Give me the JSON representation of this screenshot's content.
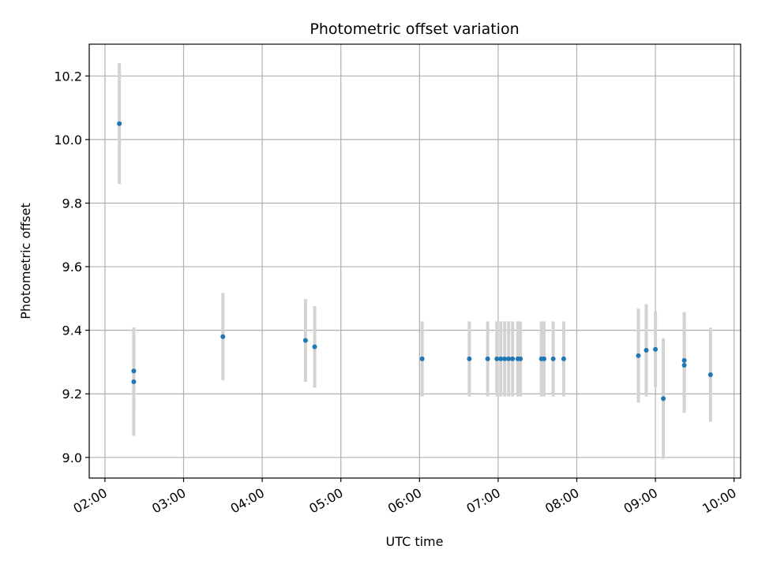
{
  "chart_data": {
    "type": "scatter",
    "title": "Photometric offset variation",
    "xlabel": "UTC time",
    "ylabel": "Photometric offset",
    "x_tick_labels": [
      "02:00",
      "03:00",
      "04:00",
      "05:00",
      "06:00",
      "07:00",
      "08:00",
      "09:00",
      "10:00"
    ],
    "y_tick_labels": [
      "9.0",
      "9.2",
      "9.4",
      "9.6",
      "9.8",
      "10.0",
      "10.2"
    ],
    "y_ticks": [
      9.0,
      9.2,
      9.4,
      9.6,
      9.8,
      10.0,
      10.2
    ],
    "x_ticks": [
      "02:00",
      "03:00",
      "04:00",
      "05:00",
      "06:00",
      "07:00",
      "08:00",
      "09:00",
      "10:00"
    ],
    "xlim": [
      "01:48",
      "10:05"
    ],
    "ylim": [
      8.935,
      10.3
    ],
    "grid": true,
    "colors": {
      "point": "#1f77b4",
      "errorbar": "#d3d3d3",
      "grid": "#b0b0b0"
    },
    "points": [
      {
        "x": "02:11",
        "y": 10.05,
        "err": 0.19
      },
      {
        "x": "02:22",
        "y": 9.272,
        "err": 0.137
      },
      {
        "x": "02:22",
        "y": 9.238,
        "err": 0.17
      },
      {
        "x": "03:30",
        "y": 9.38,
        "err": 0.137
      },
      {
        "x": "04:33",
        "y": 9.368,
        "err": 0.13
      },
      {
        "x": "04:40",
        "y": 9.348,
        "err": 0.128
      },
      {
        "x": "06:02",
        "y": 9.31,
        "err": 0.118
      },
      {
        "x": "06:38",
        "y": 9.31,
        "err": 0.118
      },
      {
        "x": "06:52",
        "y": 9.31,
        "err": 0.118
      },
      {
        "x": "06:59",
        "y": 9.31,
        "err": 0.118
      },
      {
        "x": "07:02",
        "y": 9.31,
        "err": 0.118
      },
      {
        "x": "07:05",
        "y": 9.31,
        "err": 0.118
      },
      {
        "x": "07:08",
        "y": 9.31,
        "err": 0.118
      },
      {
        "x": "07:11",
        "y": 9.31,
        "err": 0.118
      },
      {
        "x": "07:15",
        "y": 9.31,
        "err": 0.118
      },
      {
        "x": "07:17",
        "y": 9.31,
        "err": 0.118
      },
      {
        "x": "07:33",
        "y": 9.31,
        "err": 0.118
      },
      {
        "x": "07:35",
        "y": 9.31,
        "err": 0.118
      },
      {
        "x": "07:42",
        "y": 9.31,
        "err": 0.118
      },
      {
        "x": "07:50",
        "y": 9.31,
        "err": 0.118
      },
      {
        "x": "08:47",
        "y": 9.32,
        "err": 0.148
      },
      {
        "x": "08:53",
        "y": 9.337,
        "err": 0.145
      },
      {
        "x": "09:00",
        "y": 9.34,
        "err": 0.12
      },
      {
        "x": "09:06",
        "y": 9.185,
        "err": 0.19
      },
      {
        "x": "09:22",
        "y": 9.305,
        "err": 0.152
      },
      {
        "x": "09:22",
        "y": 9.29,
        "err": 0.15
      },
      {
        "x": "09:42",
        "y": 9.26,
        "err": 0.148
      }
    ]
  }
}
